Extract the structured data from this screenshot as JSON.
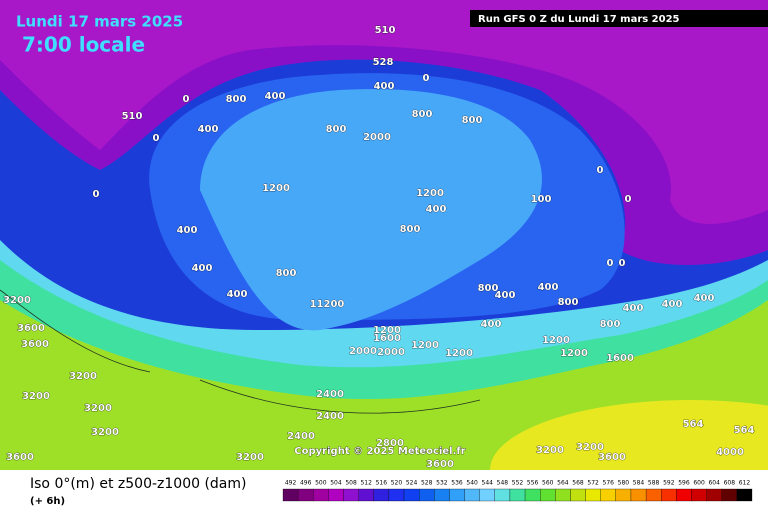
{
  "header": {
    "title": "Lundi 17 mars 2025",
    "subtitle": "7:00 locale",
    "run": "Run GFS 0 Z du Lundi 17 mars 2025"
  },
  "map": {
    "labels": [
      "510",
      "528",
      "510",
      "0",
      "400",
      "800",
      "800",
      "800",
      "2000",
      "1200",
      "1200",
      "400",
      "800",
      "400",
      "400",
      "400",
      "800",
      "11200",
      "1200",
      "1600",
      "2000",
      "2000",
      "1200",
      "1200",
      "3200",
      "3600",
      "3600",
      "3200",
      "3200",
      "3200",
      "3200",
      "3600",
      "3200",
      "2400",
      "2400",
      "2400",
      "2800",
      "3600",
      "3200",
      "3200",
      "3600",
      "4000",
      "564",
      "564",
      "400",
      "400",
      "800",
      "400",
      "800",
      "1200",
      "1600",
      "1200",
      "100",
      "0",
      "0",
      "0",
      "0",
      "400",
      "800",
      "400",
      "400",
      "800",
      "400",
      "400",
      "0",
      "0",
      "0"
    ],
    "copyright": "Copyright © 2025 Meteociel.fr"
  },
  "legend": {
    "title": "Iso 0°(m) et z500-z1000 (dam)",
    "step": "(+ 6h)",
    "scale": [
      "492",
      "496",
      "500",
      "504",
      "508",
      "512",
      "516",
      "520",
      "524",
      "528",
      "532",
      "536",
      "540",
      "544",
      "548",
      "552",
      "556",
      "560",
      "564",
      "568",
      "572",
      "576",
      "580",
      "584",
      "588",
      "592",
      "596",
      "600",
      "604",
      "608",
      "612"
    ],
    "colors": [
      "#600060",
      "#800080",
      "#a000a0",
      "#b000c0",
      "#9010d0",
      "#6010d0",
      "#3020e0",
      "#2030f0",
      "#1040f0",
      "#1060f0",
      "#1880f0",
      "#30a0f8",
      "#50b8f8",
      "#70d0ff",
      "#60e0e0",
      "#40e0a0",
      "#40e060",
      "#60e030",
      "#90e020",
      "#c0e010",
      "#e8e800",
      "#f8d000",
      "#f8b000",
      "#f89000",
      "#f86000",
      "#f83000",
      "#f00000",
      "#d00000",
      "#a00000",
      "#600000",
      "#000000"
    ]
  }
}
